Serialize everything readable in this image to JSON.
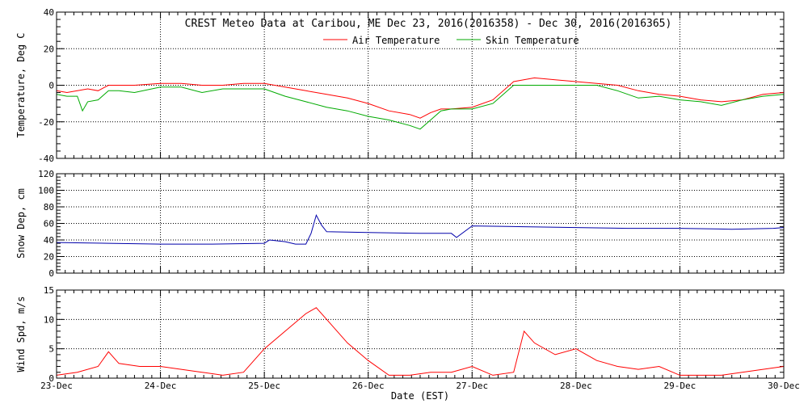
{
  "chart_data": [
    {
      "type": "line",
      "title": "CREST Meteo Data at Caribou, ME   Dec 23, 2016(2016358) - Dec 30, 2016(2016365)",
      "ylabel": "Temperature, Deg C",
      "ylim": [
        -40,
        40
      ],
      "yticks": [
        40,
        20,
        0,
        -20,
        -40
      ],
      "grid": true,
      "legend_position": "top-center",
      "series": [
        {
          "name": "Air Temperature",
          "color": "#ff0000",
          "x": [
            0,
            0.1,
            0.2,
            0.3,
            0.4,
            0.5,
            0.6,
            0.75,
            1.0,
            1.2,
            1.4,
            1.6,
            1.8,
            2.0,
            2.2,
            2.4,
            2.6,
            2.8,
            3.0,
            3.2,
            3.4,
            3.5,
            3.6,
            3.7,
            3.8,
            4.0,
            4.2,
            4.4,
            4.6,
            4.8,
            5.0,
            5.2,
            5.4,
            5.6,
            5.8,
            6.0,
            6.2,
            6.4,
            6.6,
            6.8,
            7.0
          ],
          "y": [
            -3,
            -4,
            -3,
            -2,
            -3,
            0,
            0,
            0,
            1,
            1,
            0,
            0,
            1,
            1,
            -1,
            -3,
            -5,
            -7,
            -10,
            -14,
            -16,
            -18,
            -15,
            -13,
            -13,
            -12,
            -8,
            2,
            4,
            3,
            2,
            1,
            0,
            -3,
            -5,
            -6,
            -8,
            -9,
            -8,
            -5,
            -4
          ]
        },
        {
          "name": "Skin Temperature",
          "color": "#00aa00",
          "x": [
            0,
            0.1,
            0.2,
            0.25,
            0.3,
            0.4,
            0.5,
            0.6,
            0.75,
            1.0,
            1.2,
            1.4,
            1.6,
            1.8,
            2.0,
            2.2,
            2.4,
            2.6,
            2.8,
            3.0,
            3.2,
            3.4,
            3.5,
            3.6,
            3.7,
            3.8,
            4.0,
            4.2,
            4.4,
            4.6,
            4.8,
            5.0,
            5.2,
            5.4,
            5.6,
            5.8,
            6.0,
            6.2,
            6.4,
            6.6,
            6.8,
            7.0
          ],
          "y": [
            -5,
            -6,
            -6,
            -14,
            -9,
            -8,
            -3,
            -3,
            -4,
            -1,
            -1,
            -4,
            -2,
            -2,
            -2,
            -6,
            -9,
            -12,
            -14,
            -17,
            -19,
            -22,
            -24,
            -19,
            -14,
            -13,
            -13,
            -10,
            0,
            0,
            0,
            0,
            0,
            -3,
            -7,
            -6,
            -8,
            -9,
            -11,
            -8,
            -6,
            -5
          ]
        }
      ]
    },
    {
      "type": "line",
      "ylabel": "Snow Dep, cm",
      "ylim": [
        0,
        120
      ],
      "yticks": [
        120,
        100,
        80,
        60,
        40,
        20,
        0
      ],
      "grid": true,
      "series": [
        {
          "color": "#0000aa",
          "x": [
            0,
            0.5,
            1.0,
            1.5,
            2.0,
            2.05,
            2.2,
            2.3,
            2.4,
            2.45,
            2.5,
            2.55,
            2.6,
            3.0,
            3.5,
            3.8,
            3.85,
            4.0,
            4.5,
            5.0,
            5.5,
            6.0,
            6.5,
            6.9,
            7.0
          ],
          "y": [
            37,
            36,
            35,
            35,
            36,
            40,
            38,
            35,
            35,
            48,
            70,
            58,
            50,
            49,
            48,
            48,
            43,
            57,
            56,
            55,
            54,
            54,
            53,
            54,
            55
          ]
        }
      ]
    },
    {
      "type": "line",
      "xlabel": "Date (EST)",
      "ylabel": "Wind Spd, m/s",
      "ylim": [
        0,
        15
      ],
      "yticks": [
        15,
        10,
        5,
        0
      ],
      "grid": true,
      "series": [
        {
          "color": "#ff0000",
          "x": [
            0,
            0.2,
            0.4,
            0.5,
            0.6,
            0.8,
            1.0,
            1.2,
            1.4,
            1.6,
            1.8,
            2.0,
            2.2,
            2.4,
            2.5,
            2.6,
            2.8,
            3.0,
            3.2,
            3.4,
            3.6,
            3.8,
            4.0,
            4.2,
            4.4,
            4.5,
            4.6,
            4.8,
            5.0,
            5.2,
            5.4,
            5.6,
            5.8,
            6.0,
            6.2,
            6.4,
            6.6,
            6.8,
            7.0
          ],
          "y": [
            0.5,
            1,
            2,
            4.5,
            2.5,
            2,
            2,
            1.5,
            1,
            0.5,
            1,
            5,
            8,
            11,
            12,
            10,
            6,
            3,
            0.5,
            0.5,
            1,
            1,
            2,
            0.5,
            1,
            8,
            6,
            4,
            5,
            3,
            2,
            1.5,
            2,
            0.5,
            0.5,
            0.5,
            1,
            1.5,
            2
          ]
        }
      ]
    }
  ],
  "x_axis": {
    "range": [
      0,
      7
    ],
    "tick_labels": [
      "23-Dec",
      "24-Dec",
      "25-Dec",
      "26-Dec",
      "27-Dec",
      "28-Dec",
      "29-Dec",
      "30-Dec"
    ]
  }
}
